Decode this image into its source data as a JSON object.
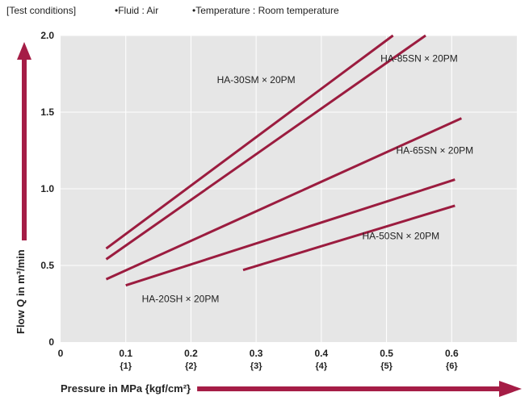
{
  "header": {
    "conditions_label": "[Test conditions]",
    "fluid": "•Fluid : Air",
    "temperature": "•Temperature : Room temperature"
  },
  "colors": {
    "plot_background": "#e6e6e6",
    "series_line": "#9b1c3f",
    "arrow": "#a51d46",
    "text": "#222222"
  },
  "chart_data": {
    "type": "line",
    "title": "",
    "xlabel": "Pressure in MPa {kgf/cm²}",
    "ylabel": "Flow Q in m³/min",
    "xlim": [
      0,
      0.7
    ],
    "ylim": [
      0,
      2.0
    ],
    "grid": true,
    "x_ticks": [
      {
        "value": 0,
        "label": "0",
        "sublabel": ""
      },
      {
        "value": 0.1,
        "label": "0.1",
        "sublabel": "{1}"
      },
      {
        "value": 0.2,
        "label": "0.2",
        "sublabel": "{2}"
      },
      {
        "value": 0.3,
        "label": "0.3",
        "sublabel": "{3}"
      },
      {
        "value": 0.4,
        "label": "0.4",
        "sublabel": "{4}"
      },
      {
        "value": 0.5,
        "label": "0.5",
        "sublabel": "{5}"
      },
      {
        "value": 0.6,
        "label": "0.6",
        "sublabel": "{6}"
      }
    ],
    "y_ticks": [
      {
        "value": 0,
        "label": "0"
      },
      {
        "value": 0.5,
        "label": "0.5"
      },
      {
        "value": 1.0,
        "label": "1.0"
      },
      {
        "value": 1.5,
        "label": "1.5"
      },
      {
        "value": 2.0,
        "label": "2.0"
      }
    ],
    "series": [
      {
        "name": "HA-30SM × 20PM",
        "x": [
          0.07,
          0.51
        ],
        "y": [
          0.61,
          2.0
        ]
      },
      {
        "name": "HA-85SN × 20PM",
        "x": [
          0.07,
          0.56
        ],
        "y": [
          0.54,
          2.0
        ]
      },
      {
        "name": "HA-65SN × 20PM",
        "x": [
          0.07,
          0.615
        ],
        "y": [
          0.41,
          1.46
        ]
      },
      {
        "name": "HA-20SH × 20PM",
        "x": [
          0.1,
          0.605
        ],
        "y": [
          0.37,
          1.06
        ]
      },
      {
        "name": "HA-50SN × 20PM",
        "x": [
          0.28,
          0.605
        ],
        "y": [
          0.47,
          0.89
        ]
      }
    ],
    "annotations": [
      {
        "text": "HA-30SM × 20PM",
        "x": 0.3,
        "y": 1.69
      },
      {
        "text": "HA-85SN × 20PM",
        "x": 0.55,
        "y": 1.83
      },
      {
        "text": "HA-65SN × 20PM",
        "x": 0.574,
        "y": 1.23
      },
      {
        "text": "HA-50SN × 20PM",
        "x": 0.522,
        "y": 0.67
      },
      {
        "text": "HA-20SH × 20PM",
        "x": 0.184,
        "y": 0.26
      }
    ]
  }
}
